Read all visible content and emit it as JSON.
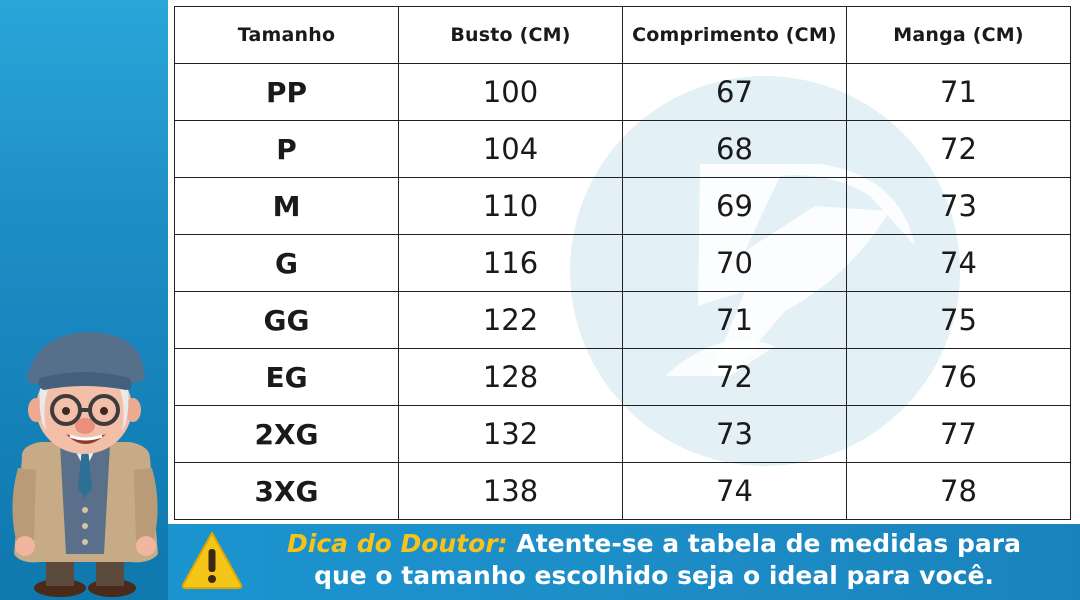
{
  "table": {
    "headers": [
      "Tamanho",
      "Busto (CM)",
      "Comprimento (CM)",
      "Manga (CM)"
    ],
    "rows": [
      {
        "size": "PP",
        "busto": "100",
        "comprimento": "67",
        "manga": "71"
      },
      {
        "size": "P",
        "busto": "104",
        "comprimento": "68",
        "manga": "72"
      },
      {
        "size": "M",
        "busto": "110",
        "comprimento": "69",
        "manga": "73"
      },
      {
        "size": "G",
        "busto": "116",
        "comprimento": "70",
        "manga": "74"
      },
      {
        "size": "GG",
        "busto": "122",
        "comprimento": "71",
        "manga": "75"
      },
      {
        "size": "EG",
        "busto": "128",
        "comprimento": "72",
        "manga": "76"
      },
      {
        "size": "2XG",
        "busto": "132",
        "comprimento": "73",
        "manga": "77"
      },
      {
        "size": "3XG",
        "busto": "138",
        "comprimento": "74",
        "manga": "78"
      }
    ]
  },
  "tip": {
    "label": "Dica do Doutor:",
    "line1": " Atente-se a tabela de medidas para",
    "line2": "que o tamanho escolhido seja o ideal para você."
  },
  "icons": {
    "warning": "warning-icon",
    "mascot": "doctor-mascot-illustration",
    "watermark": "brand-logo-watermark"
  },
  "colors": {
    "background_blue": "#1e8fc6",
    "tip_label_yellow": "#f7c21a",
    "warning_yellow": "#f5c518",
    "watermark_tint": "#e3f0f6"
  }
}
